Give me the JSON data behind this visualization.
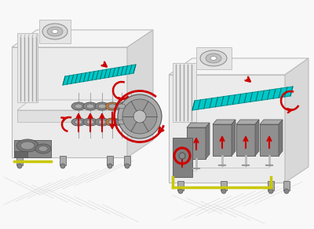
{
  "fig_bg": "#f8f8f8",
  "fig_w": 4.0,
  "fig_h": 2.91,
  "dpi": 100,
  "bg_color": "#f8f8f8",
  "cyan_color": "#00c8c8",
  "red_color": "#cc0000",
  "yellow_color": "#c8c800",
  "frame_color": "#bbbbbb",
  "frame_fill": "#ebebeb",
  "dark_gray": "#555555",
  "med_gray": "#888888",
  "light_gray": "#cccccc",
  "white": "#ffffff",
  "floor_color": "#dddddd"
}
